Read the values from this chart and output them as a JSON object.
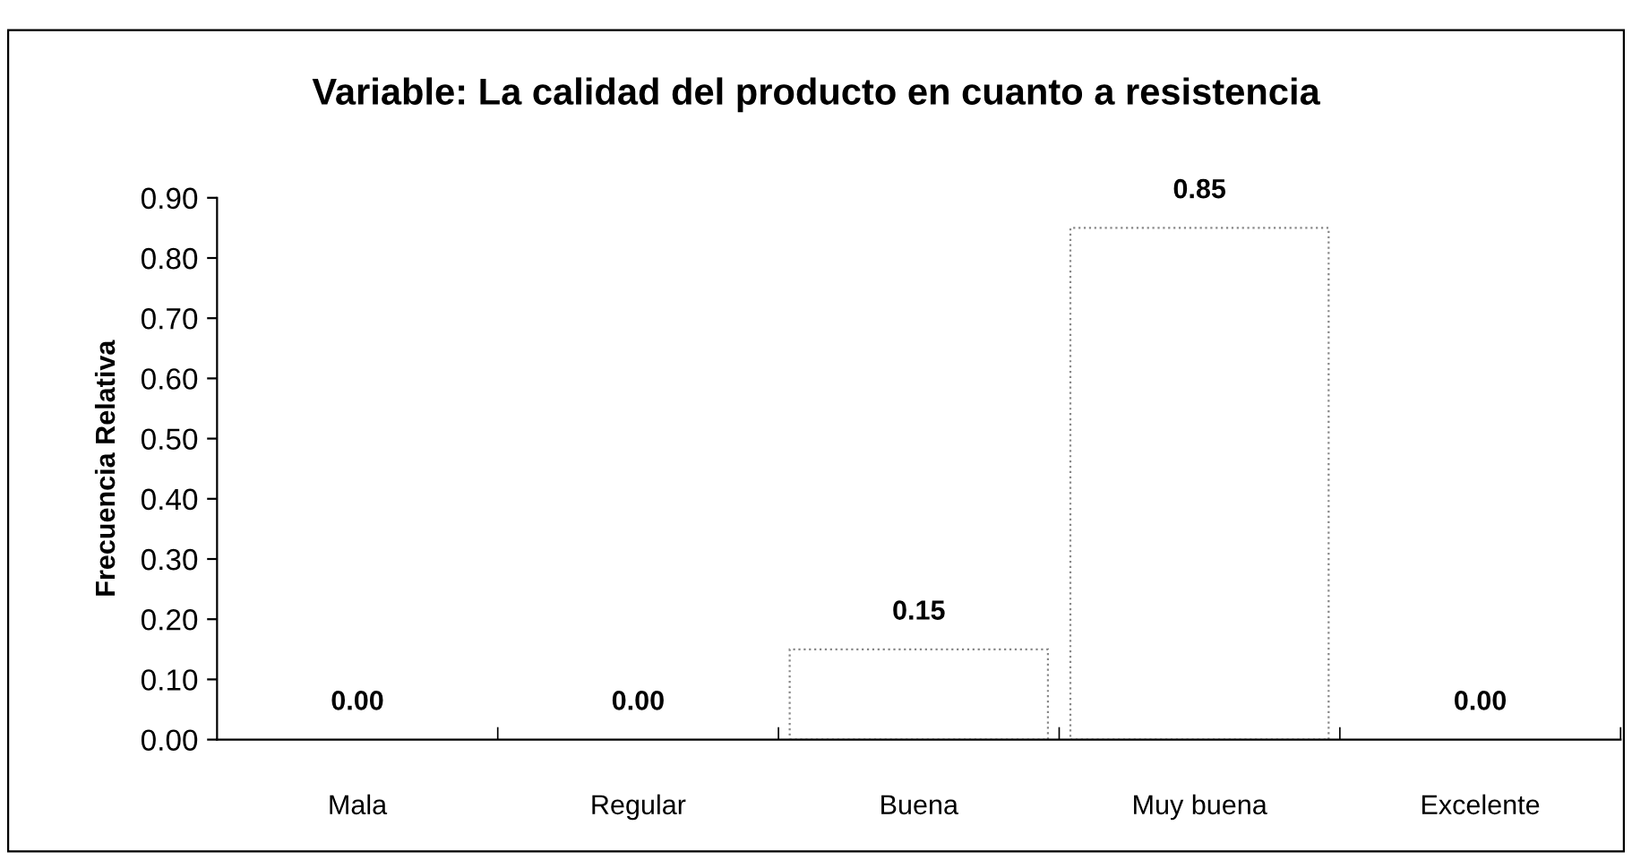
{
  "chart_data": {
    "type": "bar",
    "title": "Variable: La calidad del producto en cuanto a resistencia",
    "ylabel": "Frecuencia Relativa",
    "categories": [
      "Mala",
      "Regular",
      "Buena",
      "Muy buena",
      "Excelente"
    ],
    "values": [
      0.0,
      0.0,
      0.15,
      0.85,
      0.0
    ],
    "color": "#ffffff",
    "ylim": [
      0,
      0.9
    ],
    "yticks": [
      {
        "value": 0,
        "label": "0.00"
      },
      {
        "value": 0.1,
        "label": "0.10"
      },
      {
        "value": 0.2,
        "label": "0.20"
      },
      {
        "value": 0.3,
        "label": "0.30"
      },
      {
        "value": 0.4,
        "label": "0.40"
      },
      {
        "value": 0.5,
        "label": "0.50"
      },
      {
        "value": 0.6,
        "label": "0.60"
      },
      {
        "value": 0.7,
        "label": "0.70"
      },
      {
        "value": 0.8,
        "label": "0.80"
      },
      {
        "value": 0.9,
        "label": "0.90"
      }
    ],
    "value_labels": [
      "0.00",
      "0.00",
      "0.15",
      "0.85",
      "0.00"
    ],
    "grid": false,
    "legend": false
  }
}
